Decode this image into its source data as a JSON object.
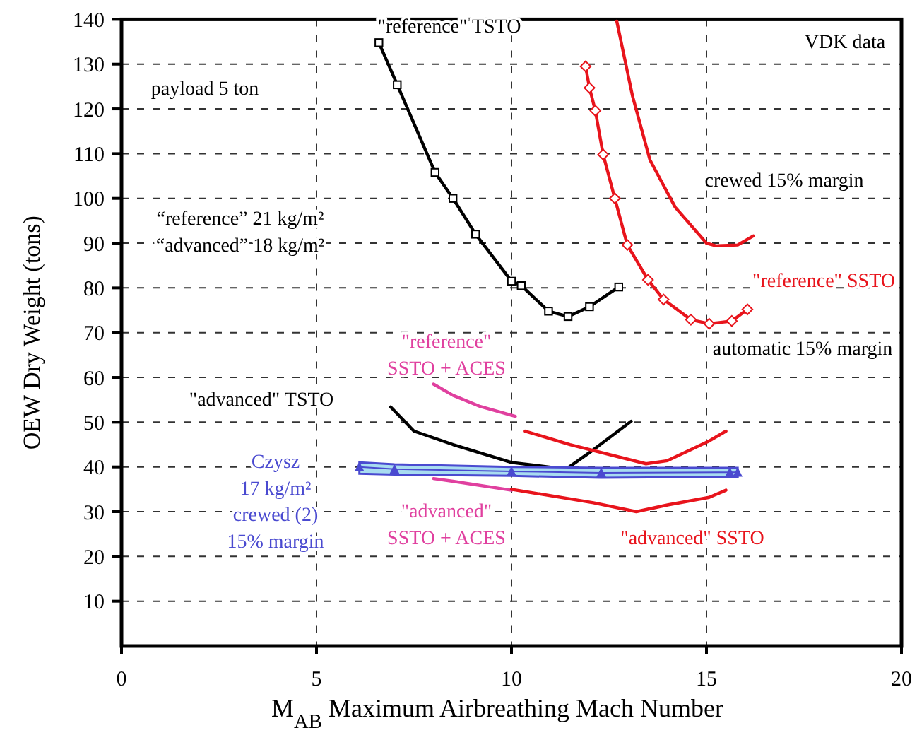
{
  "chart_data": {
    "type": "line",
    "xlabel": "M$_{AB}$ Maximum Airbreathing Mach Number",
    "ylabel": "OEW Dry Weight (tons)",
    "xlim": [
      0,
      20
    ],
    "xticks": [
      0,
      5,
      10,
      15,
      20
    ],
    "ylim": [
      0,
      140
    ],
    "yticks": [
      10,
      20,
      30,
      40,
      50,
      60,
      70,
      80,
      90,
      100,
      110,
      120,
      130,
      140
    ],
    "grid": true,
    "line_style": "solid",
    "series": [
      {
        "name": "\"reference\" TSTO",
        "color": "#000000",
        "marker": "square",
        "x": [
          6.6,
          7.07,
          8.04,
          8.5,
          9.08,
          10.0,
          10.25,
          10.95,
          11.45,
          12.0,
          12.75
        ],
        "values": [
          134.8,
          125.4,
          105.8,
          100,
          92,
          81.5,
          80.5,
          74.8,
          73.6,
          75.8,
          80.2
        ]
      },
      {
        "color": "#e8141c",
        "marker": "none",
        "x": [
          12.7,
          13.1,
          13.55,
          14.2,
          15.0,
          15.25,
          15.8,
          16.2
        ],
        "values": [
          139.6,
          123,
          108.6,
          98,
          90,
          89.4,
          89.6,
          91.6
        ]
      },
      {
        "name": "\"reference\" SSTO",
        "color": "#e8141c",
        "marker": "diamond",
        "x": [
          11.9,
          12.0,
          12.15,
          12.35,
          12.65,
          12.97,
          13.5,
          13.9,
          14.6,
          15.07,
          15.65,
          16.05
        ],
        "values": [
          129.5,
          124.7,
          119.6,
          109.8,
          100,
          89.6,
          81.8,
          77.4,
          72.9,
          72,
          72.6,
          75.2
        ]
      },
      {
        "name": "\"advanced\" TSTO",
        "color": "#000000",
        "marker": "none",
        "x": [
          6.9,
          7.5,
          8.5,
          10.0,
          11.4,
          12.0,
          13.07
        ],
        "values": [
          53.4,
          48,
          45,
          41,
          39.5,
          43.2,
          50.2
        ]
      },
      {
        "name": "\"reference\"\nSSTO + ACES",
        "color": "#e0409f",
        "marker": "none",
        "x": [
          8.0,
          8.5,
          9.2,
          10.1
        ],
        "values": [
          58.5,
          56,
          53.5,
          51.3
        ]
      },
      {
        "name": "\"advanced\"\nSSTO + ACES",
        "color": "#e0409f",
        "marker": "none",
        "x": [
          8.0,
          8.5,
          10.0
        ],
        "values": [
          37.4,
          36.8,
          34.8
        ]
      },
      {
        "name": "Czysz\n17 kg/m²\ncrewed (2)\n15% margin",
        "color": "#4a4ad0",
        "marker": "triangle",
        "x": [
          6.1,
          7.0,
          10.0,
          12.3,
          15.6,
          15.8
        ],
        "values": [
          40,
          39.5,
          39,
          38.7,
          38.8,
          38.8
        ],
        "lower": [
          38.5,
          38.3,
          38,
          37.6,
          37.8,
          37.8
        ],
        "upper": [
          41,
          40.6,
          40,
          39.8,
          39.8,
          39.8
        ]
      },
      {
        "color": "#e8141c",
        "marker": "none",
        "x": [
          10.35,
          11.5,
          13.45,
          14.0,
          15.07,
          15.5
        ],
        "values": [
          48,
          45,
          40.7,
          41.4,
          45.8,
          48
        ]
      },
      {
        "name": "\"advanced\" SSTO",
        "color": "#e8141c",
        "marker": "none",
        "x": [
          10.0,
          12.1,
          13.2,
          14.0,
          15.07,
          15.5
        ],
        "values": [
          35,
          32,
          30,
          31.5,
          33.2,
          34.8
        ]
      }
    ],
    "annotations": [
      "VDK data",
      "payload 5 ton",
      "“reference” 21 kg/m²\n“advanced” 18 kg/m²",
      "crewed  15% margin",
      "automatic 15% margin"
    ]
  }
}
